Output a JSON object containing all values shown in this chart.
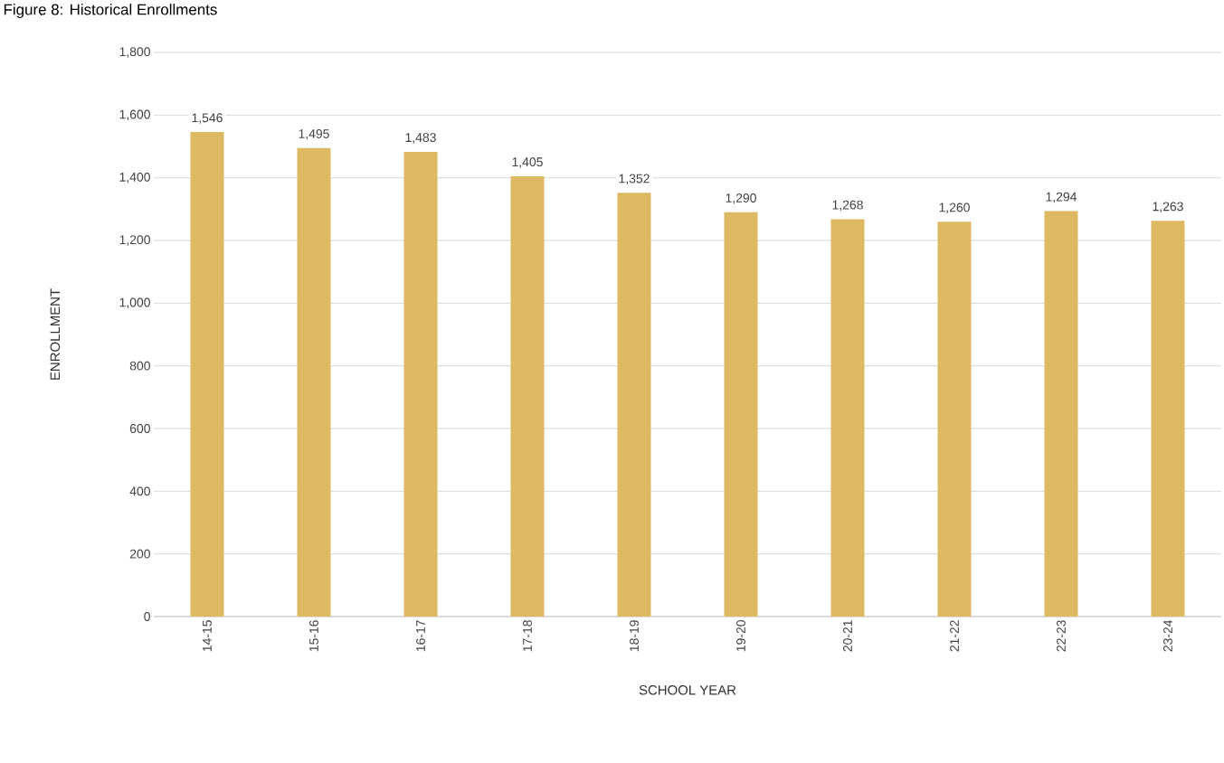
{
  "chart_data": {
    "type": "bar",
    "title": "Figure 8: Historical Enrollments",
    "xlabel": "SCHOOL YEAR",
    "ylabel": "ENROLLMENT",
    "categories": [
      "14-15",
      "15-16",
      "16-17",
      "17-18",
      "18-19",
      "19-20",
      "20-21",
      "21-22",
      "22-23",
      "23-24"
    ],
    "values": [
      1546,
      1495,
      1483,
      1405,
      1352,
      1290,
      1268,
      1260,
      1294,
      1263
    ],
    "color": "#dcb962",
    "ylim": [
      0,
      1800
    ],
    "yticks": [
      0,
      200,
      400,
      600,
      800,
      {
        "value": 1000,
        "label": "1,000"
      },
      {
        "value": 1200,
        "label": "1,200"
      },
      {
        "value": 1400,
        "label": "1,400"
      },
      {
        "value": 1600,
        "label": "1,600"
      },
      {
        "value": 1800,
        "label": "1,800"
      }
    ],
    "value_labels": [
      "1,546",
      "1,495",
      "1,483",
      "1,405",
      "1,352",
      "1,290",
      "1,268",
      "1,260",
      "1,294",
      "1,263"
    ],
    "grid": "y"
  }
}
